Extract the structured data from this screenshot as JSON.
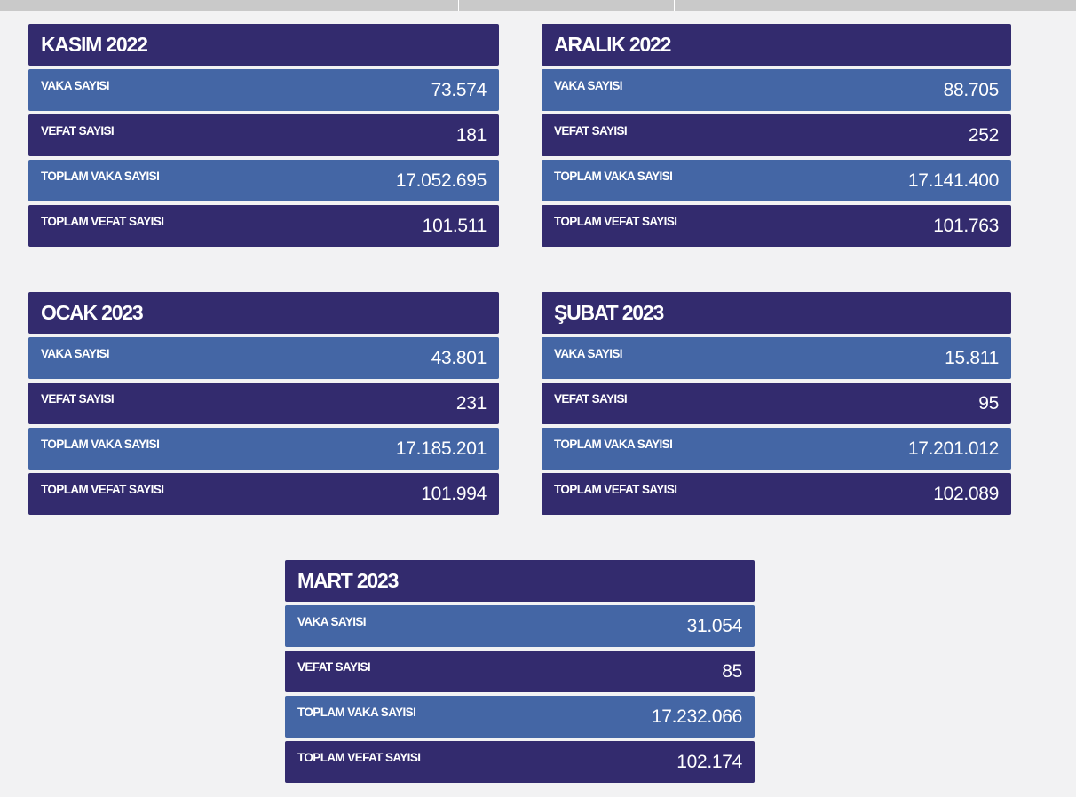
{
  "colors": {
    "dark_row": "#332b6e",
    "light_row": "#4466a5",
    "background": "#f2f2f3",
    "topbar": "#c9c9c9"
  },
  "cards": [
    {
      "title": "KASIM 2022",
      "rows": [
        {
          "label": "VAKA SAYISI",
          "value": "73.574"
        },
        {
          "label": "VEFAT SAYISI",
          "value": "181"
        },
        {
          "label": "TOPLAM VAKA SAYISI",
          "value": "17.052.695"
        },
        {
          "label": "TOPLAM VEFAT SAYISI",
          "value": "101.511"
        }
      ]
    },
    {
      "title": "ARALIK 2022",
      "rows": [
        {
          "label": "VAKA SAYISI",
          "value": "88.705"
        },
        {
          "label": "VEFAT SAYISI",
          "value": "252"
        },
        {
          "label": "TOPLAM VAKA SAYISI",
          "value": "17.141.400"
        },
        {
          "label": "TOPLAM VEFAT SAYISI",
          "value": "101.763"
        }
      ]
    },
    {
      "title": "OCAK 2023",
      "rows": [
        {
          "label": "VAKA SAYISI",
          "value": "43.801"
        },
        {
          "label": "VEFAT SAYISI",
          "value": "231"
        },
        {
          "label": "TOPLAM VAKA SAYISI",
          "value": "17.185.201"
        },
        {
          "label": "TOPLAM VEFAT SAYISI",
          "value": "101.994"
        }
      ]
    },
    {
      "title": "ŞUBAT 2023",
      "rows": [
        {
          "label": "VAKA SAYISI",
          "value": "15.811"
        },
        {
          "label": "VEFAT SAYISI",
          "value": "95"
        },
        {
          "label": "TOPLAM VAKA SAYISI",
          "value": "17.201.012"
        },
        {
          "label": "TOPLAM VEFAT SAYISI",
          "value": "102.089"
        }
      ]
    },
    {
      "title": "MART 2023",
      "rows": [
        {
          "label": "VAKA SAYISI",
          "value": "31.054"
        },
        {
          "label": "VEFAT SAYISI",
          "value": "85"
        },
        {
          "label": "TOPLAM VAKA SAYISI",
          "value": "17.232.066"
        },
        {
          "label": "TOPLAM VEFAT SAYISI",
          "value": "102.174"
        }
      ]
    }
  ]
}
